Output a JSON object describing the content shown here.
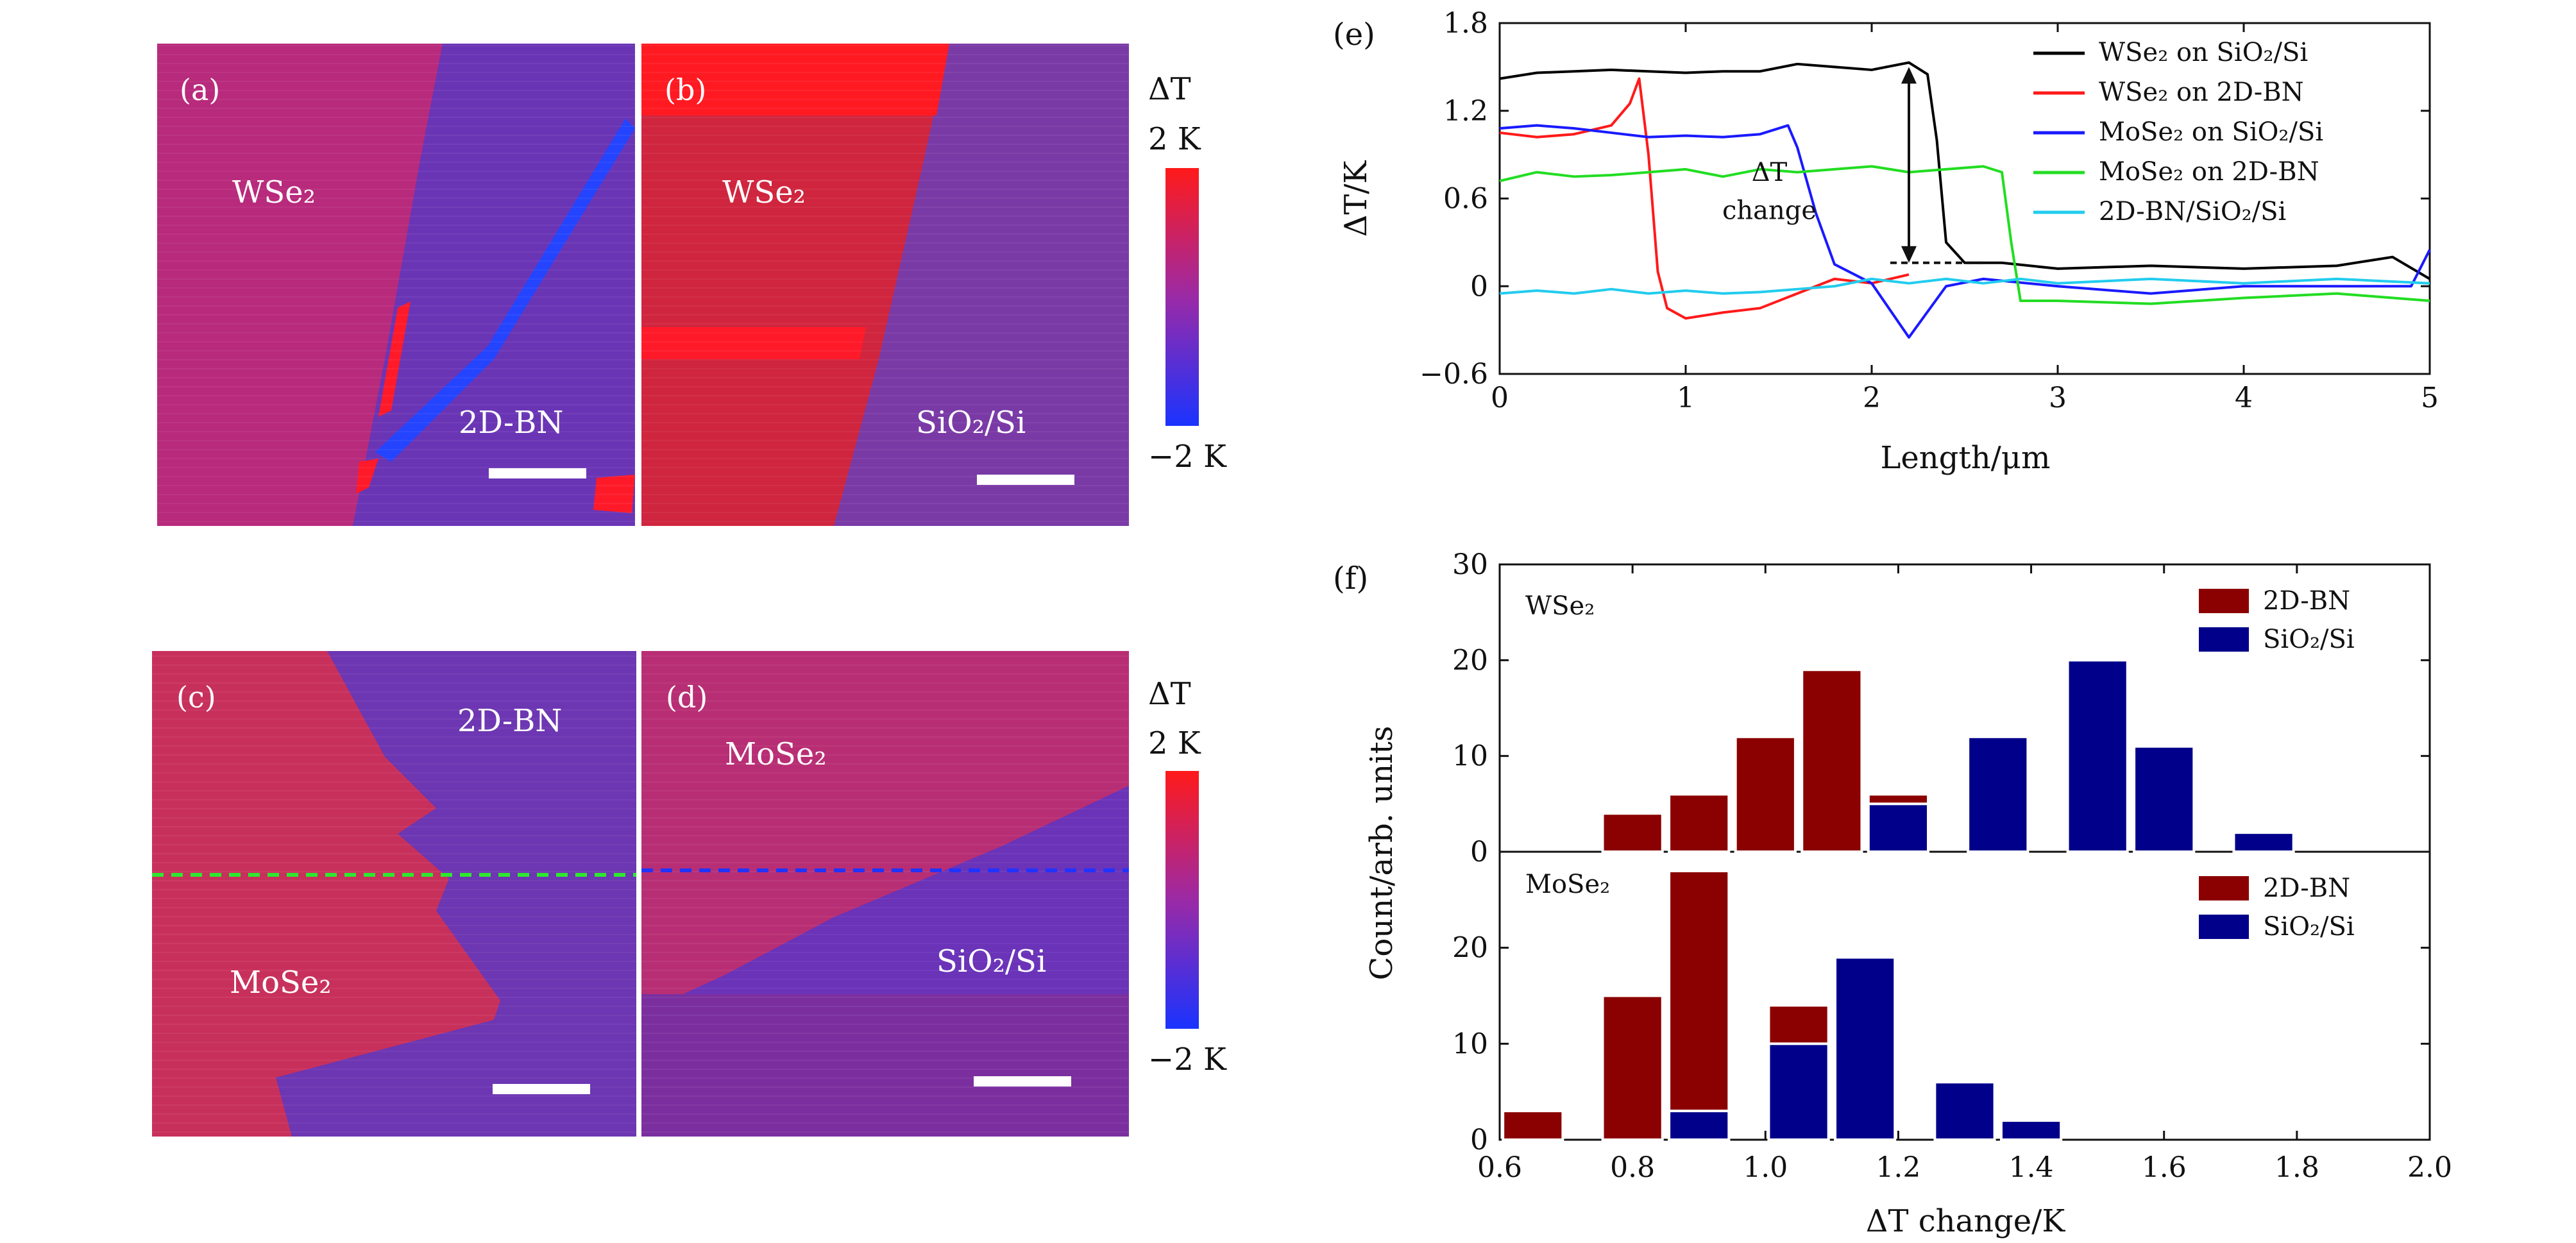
{
  "maps": {
    "a": {
      "label": "(a)",
      "material": "WSe₂",
      "substrate": "2D-BN"
    },
    "b": {
      "label": "(b)",
      "material": "WSe₂",
      "substrate": "SiO₂/Si"
    },
    "c": {
      "label": "(c)",
      "material": "MoSe₂",
      "substrate": "2D-BN"
    },
    "d": {
      "label": "(d)",
      "material": "MoSe₂",
      "substrate": "SiO₂/Si"
    }
  },
  "colorbar": {
    "title": "ΔT",
    "max_label": "2 K",
    "min_label": "−2 K",
    "max_color": "#ff1a1a",
    "min_color": "#1a33ff"
  },
  "chart_data": [
    {
      "id": "e",
      "panel_label": "(e)",
      "type": "line",
      "xlabel": "Length/μm",
      "ylabel": "ΔT/K",
      "xlim": [
        0,
        5
      ],
      "ylim": [
        -0.6,
        1.8
      ],
      "xticks": [
        "0",
        "1",
        "2",
        "3",
        "4",
        "5"
      ],
      "yticks": [
        "−0.6",
        "0",
        "0.6",
        "1.2",
        "1.8"
      ],
      "annotation": {
        "text_line1": "ΔT",
        "text_line2": "change",
        "arrow_x": 2.2,
        "arrow_from": 0.16,
        "arrow_to": 1.5
      },
      "legend_position": "top-right",
      "series": [
        {
          "name": "WSe₂ on SiO₂/Si",
          "color": "#000000",
          "x": [
            0,
            0.2,
            0.4,
            0.6,
            0.8,
            1.0,
            1.2,
            1.4,
            1.6,
            1.8,
            2.0,
            2.2,
            2.3,
            2.35,
            2.4,
            2.5,
            2.7,
            3.0,
            3.5,
            4.0,
            4.5,
            4.8,
            5.0
          ],
          "y": [
            1.42,
            1.46,
            1.47,
            1.48,
            1.47,
            1.46,
            1.47,
            1.47,
            1.52,
            1.5,
            1.48,
            1.53,
            1.45,
            1.0,
            0.3,
            0.16,
            0.16,
            0.12,
            0.14,
            0.12,
            0.14,
            0.2,
            0.05
          ]
        },
        {
          "name": "WSe₂ on 2D-BN",
          "color": "#ff1a1a",
          "x": [
            0,
            0.2,
            0.4,
            0.6,
            0.7,
            0.75,
            0.8,
            0.85,
            0.9,
            1.0,
            1.2,
            1.4,
            1.6,
            1.8,
            2.0,
            2.2
          ],
          "y": [
            1.05,
            1.02,
            1.04,
            1.1,
            1.25,
            1.42,
            0.9,
            0.1,
            -0.15,
            -0.22,
            -0.18,
            -0.15,
            -0.05,
            0.05,
            0.02,
            0.08
          ]
        },
        {
          "name": "MoSe₂ on SiO₂/Si",
          "color": "#1a1aff",
          "x": [
            0,
            0.2,
            0.4,
            0.6,
            0.8,
            1.0,
            1.2,
            1.4,
            1.55,
            1.6,
            1.7,
            1.8,
            2.0,
            2.2,
            2.4,
            2.6,
            3.0,
            3.5,
            4.0,
            4.5,
            4.9,
            5.0
          ],
          "y": [
            1.08,
            1.1,
            1.08,
            1.05,
            1.02,
            1.03,
            1.02,
            1.04,
            1.1,
            0.95,
            0.5,
            0.15,
            0.02,
            -0.35,
            0.0,
            0.05,
            0.0,
            -0.05,
            0.0,
            0.0,
            0.0,
            0.25
          ]
        },
        {
          "name": "MoSe₂ on 2D-BN",
          "color": "#22dd22",
          "x": [
            0,
            0.2,
            0.4,
            0.6,
            0.8,
            1.0,
            1.2,
            1.4,
            1.6,
            1.8,
            2.0,
            2.2,
            2.4,
            2.6,
            2.7,
            2.75,
            2.8,
            3.0,
            3.5,
            4.0,
            4.5,
            5.0
          ],
          "y": [
            0.72,
            0.78,
            0.75,
            0.76,
            0.78,
            0.8,
            0.75,
            0.8,
            0.78,
            0.8,
            0.82,
            0.78,
            0.8,
            0.82,
            0.78,
            0.3,
            -0.1,
            -0.1,
            -0.12,
            -0.08,
            -0.05,
            -0.1
          ]
        },
        {
          "name": "2D-BN/SiO₂/Si",
          "color": "#22ccee",
          "x": [
            0,
            0.2,
            0.4,
            0.6,
            0.8,
            1.0,
            1.2,
            1.4,
            1.6,
            1.8,
            2.0,
            2.2,
            2.4,
            2.6,
            2.8,
            3.0,
            3.5,
            4.0,
            4.5,
            5.0
          ],
          "y": [
            -0.05,
            -0.03,
            -0.05,
            -0.02,
            -0.05,
            -0.03,
            -0.05,
            -0.04,
            -0.02,
            0.0,
            0.05,
            0.02,
            0.05,
            0.02,
            0.05,
            0.02,
            0.05,
            0.02,
            0.05,
            0.02
          ]
        }
      ]
    },
    {
      "id": "f",
      "panel_label": "(f)",
      "type": "bar",
      "xlabel": "ΔT change/K",
      "ylabel": "Count/arb. units",
      "xlim": [
        0.6,
        2.0
      ],
      "xticks": [
        "0.6",
        "0.8",
        "1.0",
        "1.2",
        "1.4",
        "1.6",
        "1.8",
        "2.0"
      ],
      "subplots": [
        {
          "name": "WSe₂",
          "ylim": [
            0,
            30
          ],
          "yticks": [
            "0",
            "10",
            "20",
            "30"
          ],
          "legend_position": "top-right",
          "series": [
            {
              "name": "2D-BN",
              "color": "#8b0000",
              "x": [
                0.8,
                0.9,
                1.0,
                1.1,
                1.2
              ],
              "values": [
                4,
                6,
                12,
                19,
                6
              ]
            },
            {
              "name": "SiO₂/Si",
              "color": "#00008b",
              "x": [
                1.2,
                1.35,
                1.5,
                1.6,
                1.75
              ],
              "values": [
                5,
                12,
                20,
                11,
                2
              ]
            }
          ]
        },
        {
          "name": "MoSe₂",
          "ylim": [
            0,
            30
          ],
          "yticks": [
            "0",
            "10",
            "20"
          ],
          "legend_position": "top-right",
          "series": [
            {
              "name": "2D-BN",
              "color": "#8b0000",
              "x": [
                0.65,
                0.8,
                0.9,
                1.05
              ],
              "values": [
                3,
                15,
                28,
                14
              ]
            },
            {
              "name": "SiO₂/Si",
              "color": "#00008b",
              "x": [
                0.9,
                1.05,
                1.15,
                1.3,
                1.4
              ],
              "values": [
                3,
                10,
                19,
                6,
                2
              ]
            }
          ]
        }
      ]
    }
  ]
}
